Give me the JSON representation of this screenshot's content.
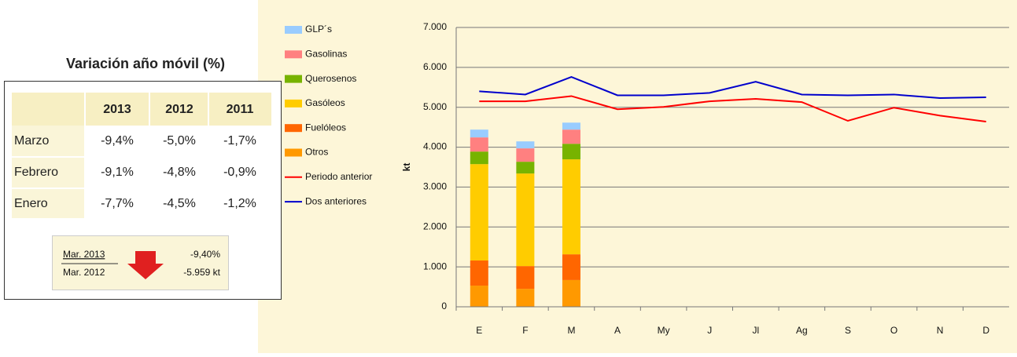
{
  "table": {
    "title": "Variación año móvil (%)",
    "columns": [
      "2013",
      "2012",
      "2011"
    ],
    "rows": [
      {
        "label": "Marzo",
        "cells": [
          "-9,4%",
          "-5,0%",
          "-1,7%"
        ]
      },
      {
        "label": "Febrero",
        "cells": [
          "-9,1%",
          "-4,8%",
          "-0,9%"
        ]
      },
      {
        "label": "Enero",
        "cells": [
          "-7,7%",
          "-4,5%",
          "-1,2%"
        ]
      }
    ],
    "summary": {
      "current": "Mar. 2013",
      "previous": "Mar. 2012",
      "percent": "-9,40%",
      "amount": "-5.959 kt"
    }
  },
  "chart_data": {
    "type": "bar",
    "stacked": true,
    "y_label": "kt",
    "categories": [
      "E",
      "F",
      "M",
      "A",
      "My",
      "J",
      "Jl",
      "Ag",
      "S",
      "O",
      "N",
      "D"
    ],
    "ylim": [
      0,
      7000
    ],
    "yticks": [
      0,
      {
        "value": 1000,
        "label": "1.000"
      },
      {
        "value": 2000,
        "label": "2.000"
      },
      {
        "value": 3000,
        "label": "3.000"
      },
      {
        "value": 4000,
        "label": "4.000"
      },
      {
        "value": 5000,
        "label": "5.000"
      },
      {
        "value": 6000,
        "label": "6.000"
      },
      {
        "value": 7000,
        "label": "7.000"
      }
    ],
    "grid": true,
    "series": [
      {
        "name": "GLP´s",
        "type": "bar",
        "color": "#99ccff",
        "values": [
          195,
          175,
          175,
          null,
          null,
          null,
          null,
          null,
          null,
          null,
          null,
          null
        ]
      },
      {
        "name": "Gasolinas",
        "type": "bar",
        "color": "#ff8080",
        "values": [
          355,
          335,
          355,
          null,
          null,
          null,
          null,
          null,
          null,
          null,
          null,
          null
        ]
      },
      {
        "name": "Querosenos",
        "type": "bar",
        "color": "#77b300",
        "values": [
          315,
          295,
          390,
          null,
          null,
          null,
          null,
          null,
          null,
          null,
          null,
          null
        ]
      },
      {
        "name": "Gasóleos",
        "type": "bar",
        "color": "#ffcc00",
        "values": [
          2415,
          2320,
          2380,
          null,
          null,
          null,
          null,
          null,
          null,
          null,
          null,
          null
        ]
      },
      {
        "name": "Fuelóleos",
        "type": "bar",
        "color": "#ff6600",
        "values": [
          630,
          570,
          645,
          null,
          null,
          null,
          null,
          null,
          null,
          null,
          null,
          null
        ]
      },
      {
        "name": "Otros",
        "type": "bar",
        "color": "#ff9900",
        "values": [
          530,
          450,
          670,
          null,
          null,
          null,
          null,
          null,
          null,
          null,
          null,
          null
        ]
      },
      {
        "name": "Periodo anterior",
        "type": "line",
        "color": "#ff0000",
        "values": [
          5150,
          5150,
          5280,
          4950,
          5010,
          5150,
          5210,
          5130,
          4660,
          4990,
          4790,
          4640
        ]
      },
      {
        "name": "Dos anteriores",
        "type": "line",
        "color": "#0000cc",
        "values": [
          5400,
          5320,
          5760,
          5300,
          5300,
          5360,
          5640,
          5320,
          5300,
          5320,
          5230,
          5250
        ]
      }
    ]
  }
}
